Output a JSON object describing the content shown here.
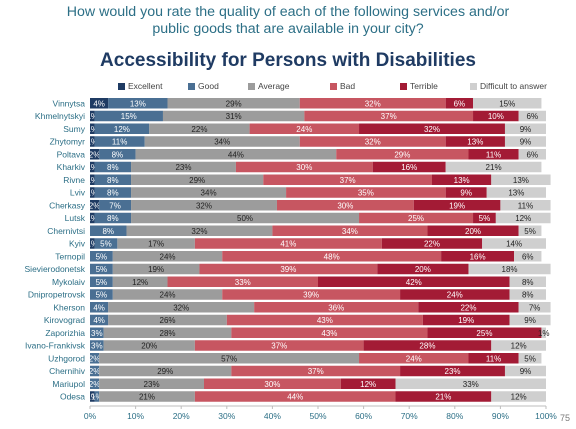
{
  "question": {
    "line1": "How would you rate the quality of each of the following services and/or",
    "line2": "public goods that are available in your city?"
  },
  "page_number": "75",
  "chart_data": {
    "type": "bar",
    "orientation": "horizontal",
    "stacked": true,
    "normalized": true,
    "title": "Accessibility for Persons with Disabilities",
    "xlabel": "",
    "ylabel": "",
    "xlim": [
      0,
      100
    ],
    "x_ticks": [
      "0%",
      "10%",
      "20%",
      "30%",
      "40%",
      "50%",
      "60%",
      "70%",
      "80%",
      "90%",
      "100%"
    ],
    "legend_position": "top",
    "grid": false,
    "categories": [
      "Vinnytsa",
      "Khmelnytskyi",
      "Sumy",
      "Zhytomyr",
      "Poltava",
      "Kharkiv",
      "Rivne",
      "Lviv",
      "Cherkasy",
      "Lutsk",
      "Chernivtsi",
      "Kyiv",
      "Ternopil",
      "Sievierodonetsk",
      "Mykolaiv",
      "Dnipropetrovsk",
      "Kherson",
      "Kirovograd",
      "Zaporizhia",
      "Ivano-Frankivsk",
      "Uzhgorod",
      "Chernihiv",
      "Mariupol",
      "Odesa"
    ],
    "series": [
      {
        "name": "Excellent",
        "color": "#1f3b63",
        "values": [
          4,
          1,
          1,
          1,
          2,
          1,
          1,
          1,
          2,
          1,
          0,
          1,
          0,
          0,
          0,
          0,
          0,
          0,
          0,
          0,
          0,
          0,
          0,
          1
        ]
      },
      {
        "name": "Good",
        "color": "#4a6f93",
        "values": [
          13,
          15,
          12,
          11,
          8,
          8,
          8,
          8,
          7,
          8,
          8,
          5,
          5,
          5,
          5,
          5,
          4,
          4,
          3,
          3,
          2,
          2,
          2,
          1
        ]
      },
      {
        "name": "Average",
        "color": "#9c9c9c",
        "values": [
          29,
          31,
          22,
          34,
          44,
          23,
          29,
          34,
          32,
          50,
          32,
          17,
          24,
          19,
          12,
          24,
          32,
          26,
          28,
          20,
          57,
          29,
          23,
          21
        ]
      },
      {
        "name": "Bad",
        "color": "#c75661",
        "values": [
          32,
          37,
          24,
          32,
          29,
          30,
          37,
          35,
          30,
          25,
          34,
          41,
          48,
          39,
          33,
          39,
          36,
          43,
          43,
          37,
          24,
          37,
          30,
          44
        ]
      },
      {
        "name": "Terrible",
        "color": "#a31b35",
        "values": [
          6,
          10,
          32,
          13,
          11,
          16,
          13,
          9,
          19,
          5,
          20,
          22,
          16,
          20,
          42,
          24,
          22,
          19,
          25,
          28,
          11,
          23,
          12,
          21
        ]
      },
      {
        "name": "Difficult to answer",
        "color": "#cfcfcf",
        "values": [
          15,
          6,
          9,
          9,
          6,
          21,
          13,
          13,
          11,
          12,
          5,
          14,
          6,
          18,
          8,
          8,
          7,
          9,
          1,
          12,
          5,
          9,
          33,
          12
        ]
      }
    ],
    "label_colors": {
      "Excellent": "#ffffff",
      "Good": "#ffffff",
      "Average": "#222222",
      "Bad": "#ffffff",
      "Terrible": "#ffffff",
      "Difficult to answer": "#222222"
    },
    "tick_color": "#2c6f86",
    "axis_color": "#bdbdbd"
  }
}
